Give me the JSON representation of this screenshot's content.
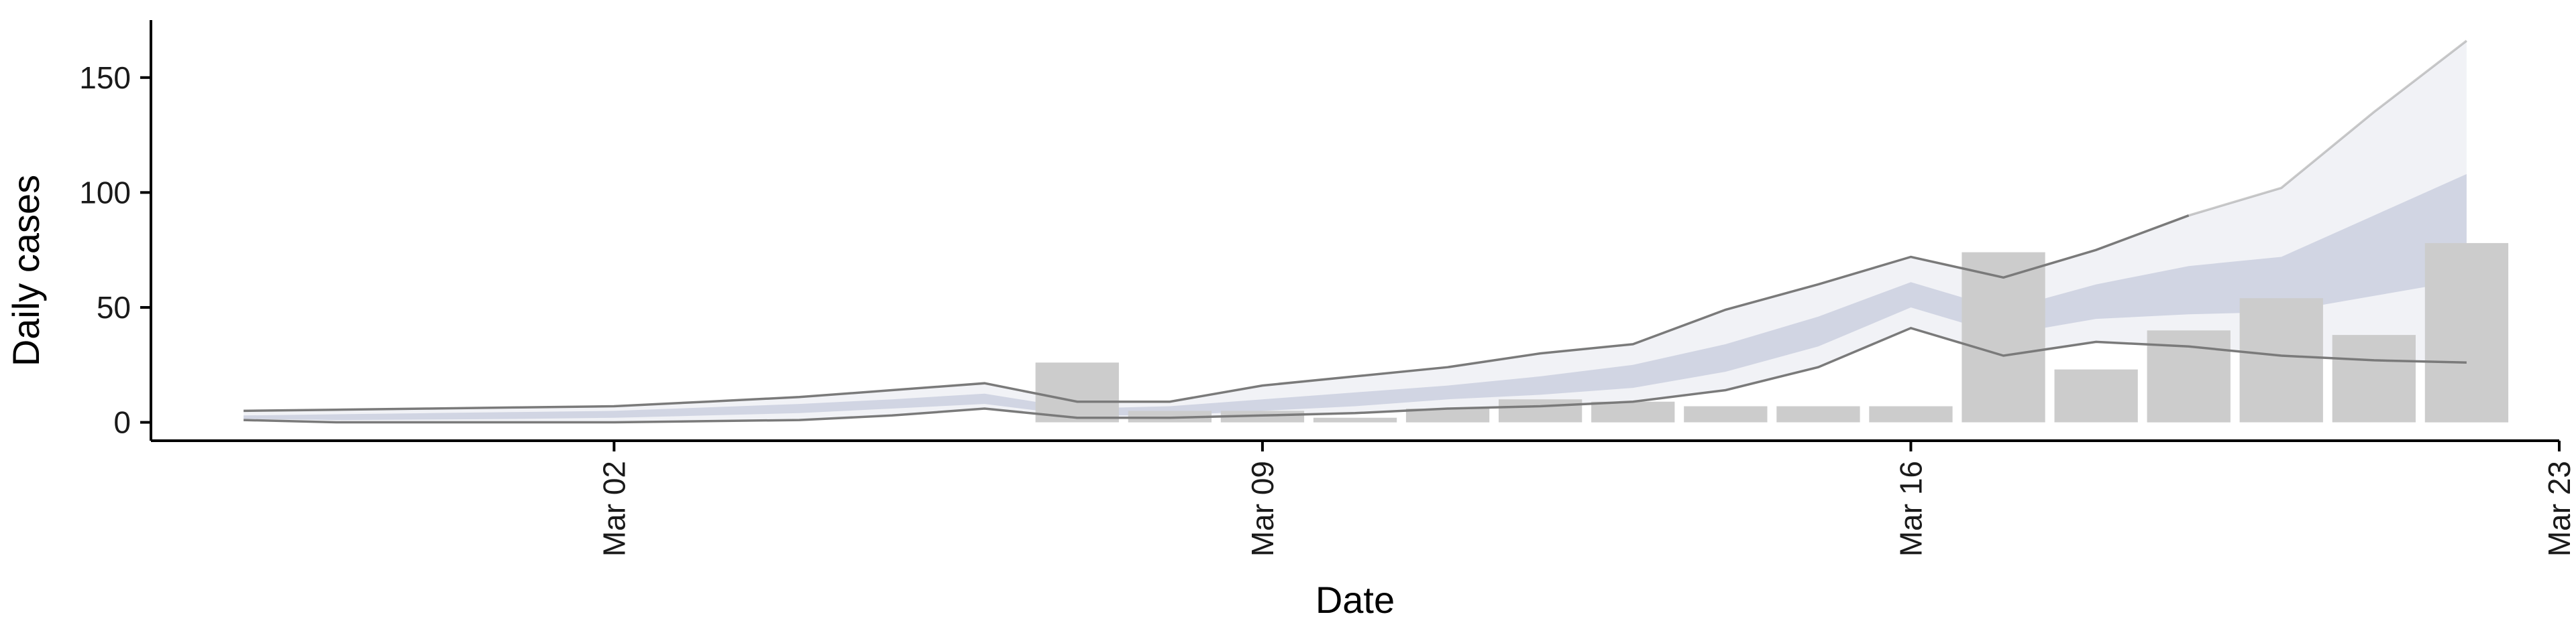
{
  "chart_data": {
    "type": "bar",
    "title": "",
    "xlabel": "Date",
    "ylabel": "Daily cases",
    "x_type": "date",
    "xlim": [
      "2020-02-26",
      "2020-03-23"
    ],
    "ylim": [
      -8,
      175
    ],
    "y_ticks": [
      0,
      50,
      100,
      150
    ],
    "x_ticks": [
      {
        "date": "2020-03-02",
        "label": "Mar 02"
      },
      {
        "date": "2020-03-09",
        "label": "Mar 09"
      },
      {
        "date": "2020-03-16",
        "label": "Mar 16"
      },
      {
        "date": "2020-03-23",
        "label": "Mar 23"
      }
    ],
    "grid": false,
    "colors": {
      "bars": "#cccccc",
      "band_outer": "#eef0f5",
      "band_inner": "#c6cbdc",
      "lines": "#7a7a7a"
    },
    "bars": {
      "dates": [
        "2020-03-07",
        "2020-03-08",
        "2020-03-09",
        "2020-03-10",
        "2020-03-11",
        "2020-03-12",
        "2020-03-13",
        "2020-03-14",
        "2020-03-15",
        "2020-03-16",
        "2020-03-17",
        "2020-03-18",
        "2020-03-19",
        "2020-03-20",
        "2020-03-21",
        "2020-03-22"
      ],
      "values": [
        26,
        5,
        5,
        2,
        6,
        10,
        9,
        7,
        7,
        7,
        74,
        23,
        40,
        54,
        38,
        78
      ]
    },
    "forecast_band": {
      "dates": [
        "2020-02-27",
        "2020-02-28",
        "2020-02-29",
        "2020-03-01",
        "2020-03-02",
        "2020-03-03",
        "2020-03-04",
        "2020-03-05",
        "2020-03-06",
        "2020-03-07",
        "2020-03-08",
        "2020-03-09",
        "2020-03-10",
        "2020-03-11",
        "2020-03-12",
        "2020-03-13",
        "2020-03-14",
        "2020-03-15",
        "2020-03-16",
        "2020-03-17",
        "2020-03-18",
        "2020-03-19",
        "2020-03-20",
        "2020-03-21",
        "2020-03-22"
      ],
      "outer_upper": [
        5,
        5.5,
        6,
        6.5,
        7,
        9,
        11,
        14,
        17,
        9,
        9,
        16,
        20,
        24,
        30,
        34,
        49,
        60,
        72,
        63,
        75,
        90,
        102,
        135,
        166
      ],
      "outer_lower": [
        1,
        0,
        0,
        0,
        0,
        0.5,
        1,
        3,
        6,
        2,
        2,
        3,
        4,
        6,
        7,
        9,
        14,
        24,
        41,
        29,
        35,
        33,
        29,
        27,
        26
      ],
      "inner_upper": [
        3,
        3.5,
        4,
        4.5,
        5,
        6.5,
        8,
        10,
        12.5,
        6,
        7,
        10,
        13,
        16,
        20,
        25,
        34,
        46,
        61,
        49,
        60,
        68,
        72,
        90,
        108
      ],
      "inner_lower": [
        1.5,
        1,
        1.2,
        1.5,
        2,
        3,
        4,
        6,
        8,
        3,
        3,
        5,
        7,
        10,
        12,
        15,
        22,
        33,
        50,
        38,
        45,
        47,
        48,
        55,
        62
      ],
      "upper_line_end_index": 21
    }
  }
}
